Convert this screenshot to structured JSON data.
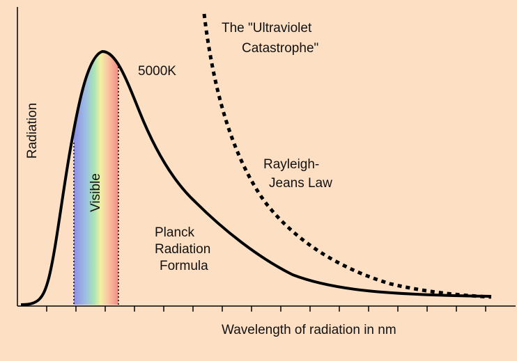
{
  "diagram": {
    "axis_y_label": "Radiation",
    "axis_x_label": "Wavelength of radiation in nm",
    "temperature_label": "5000K",
    "visible_label": "Visible",
    "uv_label": {
      "line1": "The \"Ultraviolet",
      "line2": "Catastrophe\""
    },
    "rj_label": {
      "line1": "Rayleigh-",
      "line2": "Jeans Law"
    },
    "planck_label": {
      "line1": "Planck",
      "line2": "Radiation",
      "line3": "Formula"
    },
    "colors": {
      "background": "#FDE0C4",
      "curve": "#000000",
      "spectrum": [
        "#8E8FE0",
        "#9DBBE6",
        "#A8E3B5",
        "#F2F0A2",
        "#F9C9A4",
        "#F28B84"
      ]
    }
  }
}
